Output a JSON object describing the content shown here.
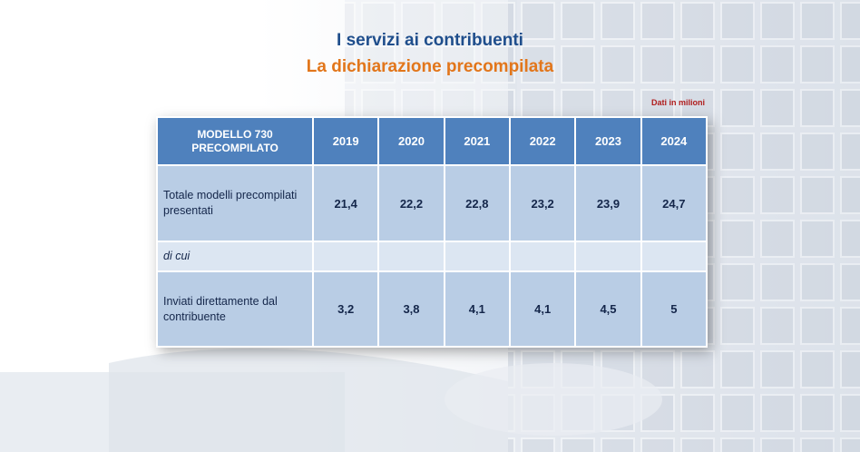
{
  "header": {
    "title": "I servizi ai contribuenti",
    "subtitle": "La dichiarazione precompilata",
    "note": "Dati in milioni"
  },
  "colors": {
    "title": "#1f4e8c",
    "subtitle": "#e2761b",
    "note": "#b01c1c",
    "table_header": "#4f81bd",
    "table_row": "#b9cde5",
    "table_row_light": "#dce6f2"
  },
  "chart_data": {
    "type": "table",
    "columns": [
      "MODELLO 730 PRECOMPILATO",
      "2019",
      "2020",
      "2021",
      "2022",
      "2023",
      "2024"
    ],
    "rows": [
      {
        "label": "Totale modelli precompilati presentati",
        "values": [
          "21,4",
          "22,2",
          "22,8",
          "23,2",
          "23,9",
          "24,7"
        ]
      },
      {
        "label": "di cui",
        "values": [
          "",
          "",
          "",
          "",
          "",
          ""
        ]
      },
      {
        "label": "Inviati direttamente dal contribuente",
        "values": [
          "3,2",
          "3,8",
          "4,1",
          "4,1",
          "4,5",
          "5"
        ]
      }
    ]
  }
}
